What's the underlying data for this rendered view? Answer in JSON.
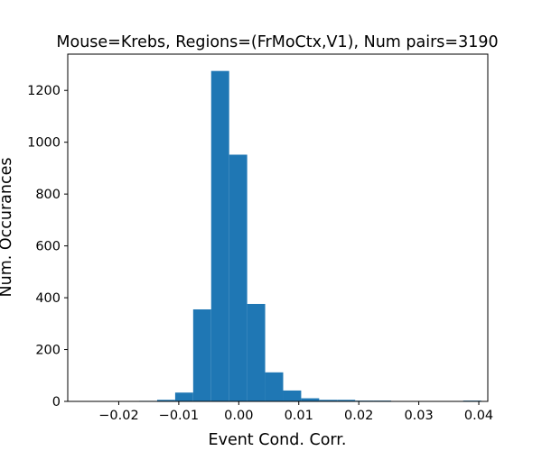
{
  "chart_data": {
    "type": "bar",
    "title": "Mouse=Krebs, Regions=(FrMoCtx,V1), Num pairs=3190",
    "xlabel": "Event Cond. Corr.",
    "ylabel": "Num. Occurances",
    "xlim": [
      -0.0285,
      0.0415
    ],
    "ylim": [
      0,
      1340
    ],
    "bin_edges": [
      -0.0256,
      -0.0226,
      -0.0196,
      -0.0166,
      -0.0136,
      -0.0106,
      -0.0076,
      -0.0046,
      -0.0016,
      0.0014,
      0.0044,
      0.0074,
      0.0104,
      0.0134,
      0.0164,
      0.0194,
      0.0224,
      0.0254,
      0.0284,
      0.0314,
      0.0344,
      0.0374,
      0.0404
    ],
    "values": [
      1,
      0,
      0,
      2,
      6,
      34,
      355,
      1275,
      952,
      376,
      112,
      42,
      12,
      6,
      6,
      3,
      3,
      1,
      0,
      0,
      1,
      3
    ],
    "xticks": [
      -0.02,
      -0.01,
      0.0,
      0.01,
      0.02,
      0.03,
      0.04
    ],
    "xtick_labels": [
      "−0.02",
      "−0.01",
      "0.00",
      "0.01",
      "0.02",
      "0.03",
      "0.04"
    ],
    "yticks": [
      0,
      200,
      400,
      600,
      800,
      1000,
      1200
    ],
    "ytick_labels": [
      "0",
      "200",
      "400",
      "600",
      "800",
      "1000",
      "1200"
    ],
    "bar_color": "#1f77b4",
    "grid": false,
    "legend": "none"
  }
}
